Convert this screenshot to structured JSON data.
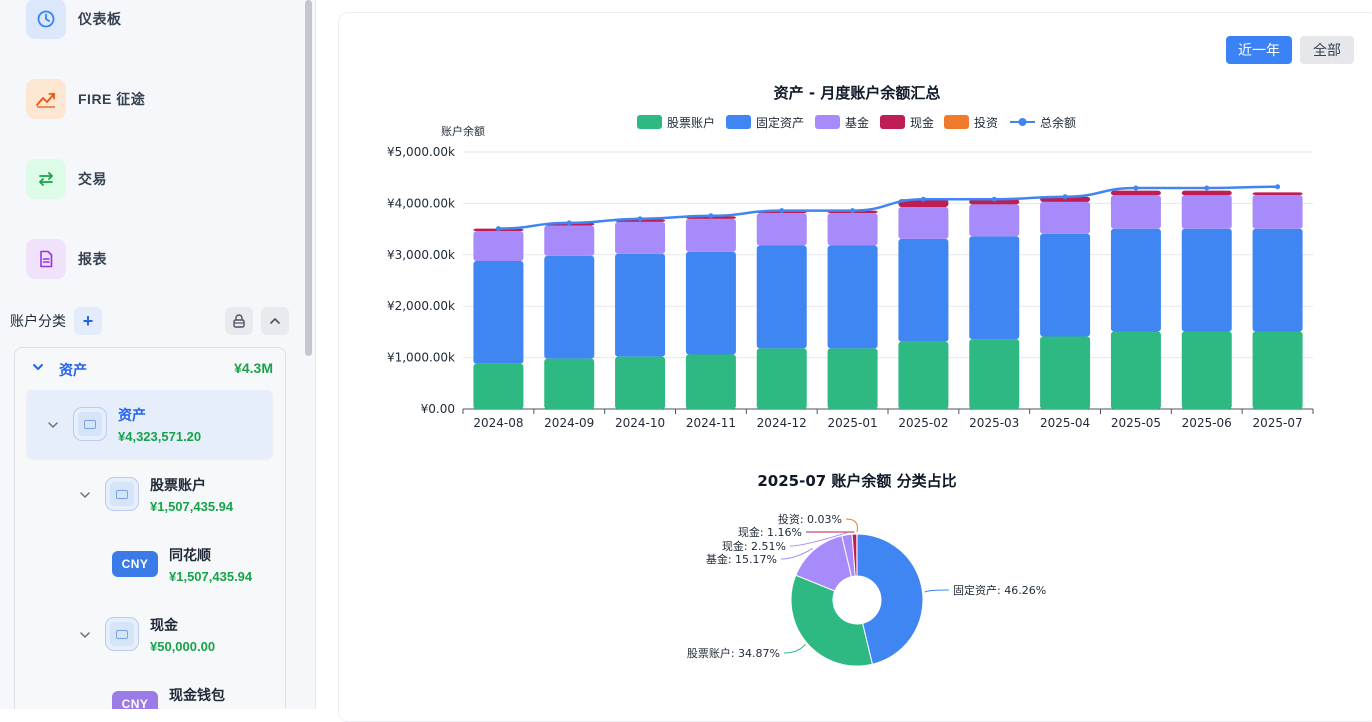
{
  "nav": {
    "items": [
      {
        "label": "仪表板",
        "icon": "clock-icon",
        "bg": "#dbe7fb",
        "color": "#3b82f6"
      },
      {
        "label": "FIRE 征途",
        "icon": "trend-up-icon",
        "bg": "#fde6d2",
        "color": "#ea580c"
      },
      {
        "label": "交易",
        "icon": "swap-arrows-icon",
        "bg": "#dcfce7",
        "color": "#16a34a"
      },
      {
        "label": "报表",
        "icon": "document-icon",
        "bg": "#f1e2fc",
        "color": "#9333ea"
      }
    ]
  },
  "accounts": {
    "title": "账户分类",
    "add": "+",
    "group": {
      "name": "资产",
      "total": "¥4.3M"
    },
    "nodes": [
      {
        "name": "资产",
        "amount": "¥4,323,571.20"
      },
      {
        "name": "股票账户",
        "amount": "¥1,507,435.94"
      },
      {
        "name": "同花顺",
        "amount": "¥1,507,435.94",
        "badge": "CNY",
        "badge_color": "#3b7be8"
      },
      {
        "name": "现金",
        "amount": "¥50,000.00"
      },
      {
        "name": "现金钱包",
        "amount": "",
        "badge": "CNY",
        "badge_color": "#9b7be6"
      }
    ]
  },
  "range": {
    "recent_year": "近一年",
    "all": "全部"
  },
  "chart_data": [
    {
      "type": "bar",
      "stacked": true,
      "title": "资产 - 月度账户余额汇总",
      "ylabel": "账户余额",
      "ylim": [
        0,
        5000000
      ],
      "yticks": [
        "¥0.00",
        "¥1,000.00k",
        "¥2,000.00k",
        "¥3,000.00k",
        "¥4,000.00k",
        "¥5,000.00k"
      ],
      "grid": true,
      "legend_position": "top",
      "categories": [
        "2024-08",
        "2024-09",
        "2024-10",
        "2024-11",
        "2024-12",
        "2025-01",
        "2025-02",
        "2025-03",
        "2025-04",
        "2025-05",
        "2025-06",
        "2025-07"
      ],
      "series": [
        {
          "name": "股票账户",
          "color": "#2eb982",
          "values": [
            880000,
            980000,
            1020000,
            1060000,
            1180000,
            1180000,
            1310000,
            1360000,
            1410000,
            1507436,
            1507436,
            1507436
          ]
        },
        {
          "name": "固定资产",
          "color": "#3f86f2",
          "values": [
            2000000,
            2000000,
            2000000,
            2000000,
            2000000,
            2000000,
            2000000,
            2000000,
            2000000,
            2000000,
            2000000,
            2000000
          ]
        },
        {
          "name": "基金",
          "color": "#a78bfa",
          "values": [
            580000,
            590000,
            620000,
            640000,
            630000,
            630000,
            620000,
            620000,
            620000,
            650000,
            650000,
            656000
          ]
        },
        {
          "name": "现金",
          "color": "#be1e55",
          "values": [
            50000,
            50000,
            50000,
            50000,
            50000,
            50000,
            150000,
            100000,
            100000,
            90000,
            90000,
            50000
          ]
        },
        {
          "name": "投资",
          "color": "#f07b2d",
          "values": [
            0,
            0,
            0,
            0,
            0,
            0,
            0,
            0,
            0,
            0,
            0,
            1300
          ]
        }
      ],
      "line": {
        "name": "总余额",
        "color": "#3f86f2",
        "values": [
          3510000,
          3620000,
          3700000,
          3760000,
          3860000,
          3860000,
          4080000,
          4080000,
          4130000,
          4300000,
          4300000,
          4323571
        ]
      }
    },
    {
      "type": "pie",
      "donut": true,
      "title": "2025-07 账户余额 分类占比",
      "slices": [
        {
          "name": "固定资产",
          "value": 46.26,
          "label": "固定资产: 46.26%",
          "color": "#3f86f2"
        },
        {
          "name": "股票账户",
          "value": 34.87,
          "label": "股票账户: 34.87%",
          "color": "#2eb982"
        },
        {
          "name": "基金",
          "value": 15.17,
          "label": "基金: 15.17%",
          "color": "#a78bfa"
        },
        {
          "name": "现金",
          "value": 2.51,
          "label": "现金: 2.51%",
          "color": "#a78bfa"
        },
        {
          "name": "现金",
          "value": 1.16,
          "label": "现金: 1.16%",
          "color": "#be1e55"
        },
        {
          "name": "投资",
          "value": 0.03,
          "label": "投资: 0.03%",
          "color": "#f07b2d"
        }
      ]
    }
  ]
}
